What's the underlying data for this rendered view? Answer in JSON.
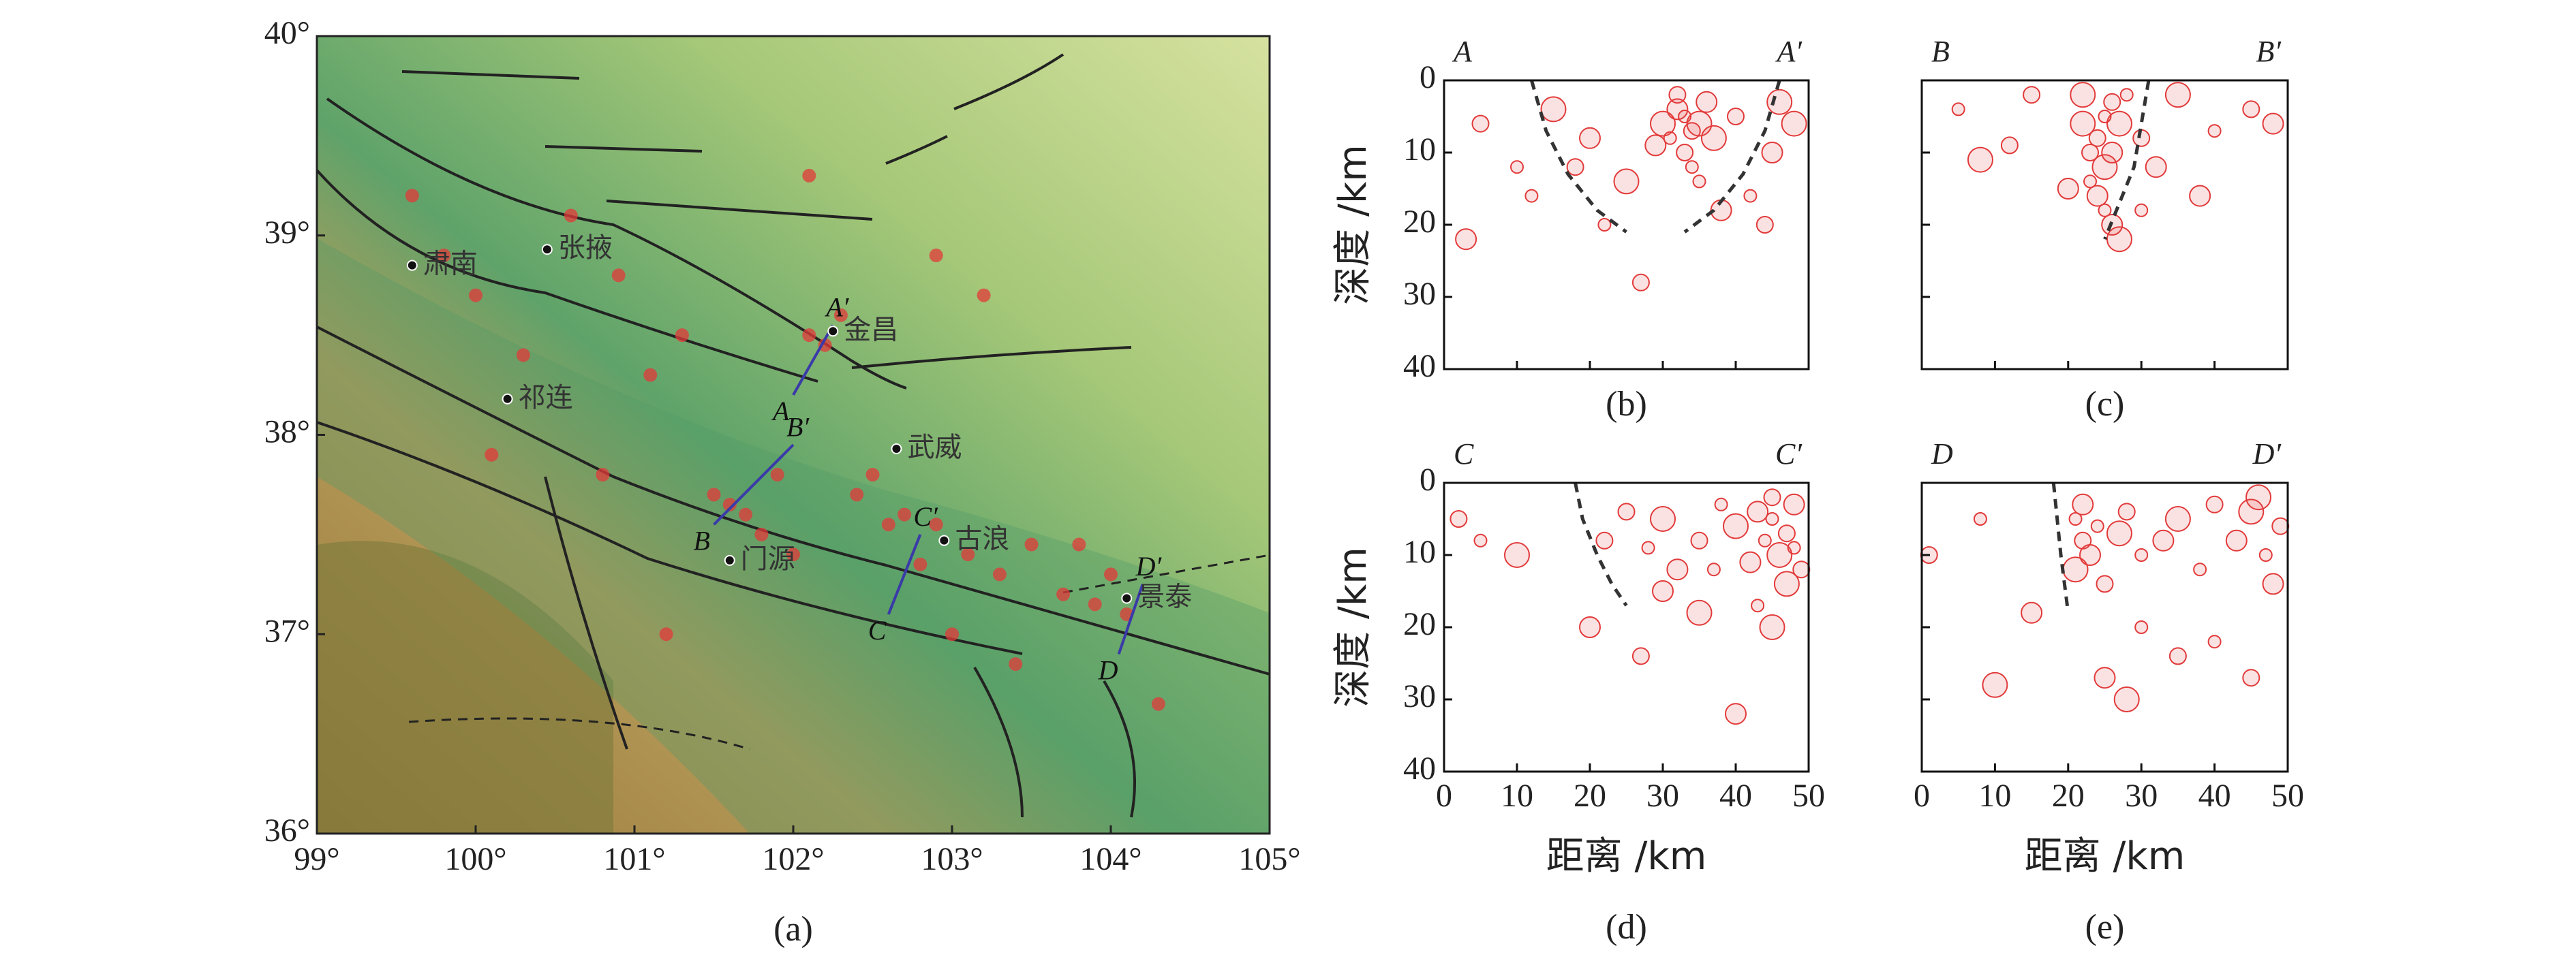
{
  "map": {
    "caption": "(a)",
    "xlim": [
      99,
      105
    ],
    "ylim": [
      36,
      40
    ],
    "xticks": [
      {
        "value": 99,
        "label": "99°"
      },
      {
        "value": 100,
        "label": "100°"
      },
      {
        "value": 101,
        "label": "101°"
      },
      {
        "value": 102,
        "label": "102°"
      },
      {
        "value": 103,
        "label": "103°"
      },
      {
        "value": 104,
        "label": "104°"
      },
      {
        "value": 105,
        "label": "105°"
      }
    ],
    "yticks": [
      {
        "value": 36,
        "label": "36°"
      },
      {
        "value": 37,
        "label": "37°"
      },
      {
        "value": 38,
        "label": "38°"
      },
      {
        "value": 39,
        "label": "39°"
      },
      {
        "value": 40,
        "label": "40°"
      }
    ],
    "places": [
      {
        "name": "张掖",
        "lon": 100.45,
        "lat": 38.93
      },
      {
        "name": "金昌",
        "lon": 102.25,
        "lat": 38.52
      },
      {
        "name": "武威",
        "lon": 102.65,
        "lat": 37.93
      },
      {
        "name": "古浪",
        "lon": 102.95,
        "lat": 37.47
      },
      {
        "name": "祁连",
        "lon": 100.2,
        "lat": 38.18
      },
      {
        "name": "门源",
        "lon": 101.6,
        "lat": 37.37
      },
      {
        "name": "景泰",
        "lon": 104.1,
        "lat": 37.18
      },
      {
        "name": "肃南",
        "lon": 99.6,
        "lat": 38.85
      }
    ],
    "profiles": [
      {
        "start": "A",
        "end": "A′",
        "lon": [
          102.0,
          102.25
        ],
        "lat": [
          38.2,
          38.55
        ]
      },
      {
        "start": "B",
        "end": "B′",
        "lon": [
          101.5,
          102.0
        ],
        "lat": [
          37.55,
          37.95
        ]
      },
      {
        "start": "C",
        "end": "C′",
        "lon": [
          102.6,
          102.8
        ],
        "lat": [
          37.1,
          37.5
        ]
      },
      {
        "start": "D",
        "end": "D′",
        "lon": [
          104.05,
          104.2
        ],
        "lat": [
          36.9,
          37.25
        ]
      }
    ],
    "quakes": {
      "color": "#e23a3a",
      "lon": [
        99.6,
        99.8,
        100.0,
        100.3,
        100.6,
        100.9,
        101.1,
        101.3,
        101.5,
        101.7,
        101.9,
        102.1,
        102.2,
        102.3,
        102.5,
        102.7,
        102.9,
        103.1,
        103.3,
        103.5,
        103.7,
        103.9,
        104.1,
        104.3,
        101.6,
        101.8,
        102.0,
        102.4,
        102.6,
        102.8,
        103.0,
        103.4,
        103.8,
        104.0,
        101.2,
        100.8,
        102.9,
        103.2,
        102.1,
        100.1
      ],
      "lat": [
        39.2,
        38.9,
        38.7,
        38.4,
        39.1,
        38.8,
        38.3,
        38.5,
        37.7,
        37.6,
        37.8,
        38.5,
        38.45,
        38.6,
        37.8,
        37.6,
        37.55,
        37.4,
        37.3,
        37.45,
        37.2,
        37.15,
        37.1,
        36.65,
        37.65,
        37.5,
        37.4,
        37.7,
        37.55,
        37.35,
        37.0,
        36.85,
        37.45,
        37.3,
        37.0,
        37.8,
        38.9,
        38.7,
        39.3,
        37.9
      ]
    }
  },
  "chart_data": [
    {
      "type": "scatter",
      "caption": "(b)",
      "start_label": "A",
      "end_label": "A′",
      "ylabel": "深度 /km",
      "xlabel": null,
      "xlim": [
        0,
        50
      ],
      "ylim": [
        0,
        40
      ],
      "xticks": [
        0,
        10,
        20,
        30,
        40,
        50
      ],
      "yticks": [
        0,
        10,
        20,
        30,
        40
      ],
      "y_inverted": true,
      "show_xtick_labels": false,
      "show_ytick_labels": true,
      "series": [
        {
          "color": "#e23a3a",
          "x": [
            33,
            34,
            32,
            35,
            31,
            33,
            36,
            30,
            34,
            32,
            29,
            37,
            35,
            40,
            45,
            48,
            42,
            44,
            20,
            15,
            10,
            5,
            3,
            25,
            22,
            27,
            38,
            46,
            12,
            18
          ],
          "y": [
            5,
            7,
            4,
            6,
            8,
            10,
            3,
            6,
            12,
            2,
            9,
            8,
            14,
            5,
            10,
            6,
            16,
            20,
            8,
            4,
            12,
            6,
            22,
            14,
            20,
            28,
            18,
            3,
            16,
            12
          ]
        }
      ],
      "curves": [
        {
          "x": [
            12,
            14,
            17,
            21,
            25
          ],
          "y": [
            0,
            7,
            13,
            18,
            21
          ]
        },
        {
          "x": [
            46,
            44,
            41,
            37,
            33
          ],
          "y": [
            0,
            7,
            13,
            18,
            21
          ]
        }
      ]
    },
    {
      "type": "scatter",
      "caption": "(c)",
      "start_label": "B",
      "end_label": "B′",
      "ylabel": null,
      "xlabel": null,
      "xlim": [
        0,
        50
      ],
      "ylim": [
        0,
        40
      ],
      "xticks": [
        0,
        10,
        20,
        30,
        40,
        50
      ],
      "yticks": [
        0,
        10,
        20,
        30,
        40
      ],
      "y_inverted": true,
      "show_xtick_labels": false,
      "show_ytick_labels": false,
      "series": [
        {
          "color": "#e23a3a",
          "x": [
            25,
            24,
            26,
            25,
            23,
            26,
            24,
            27,
            25,
            23,
            26,
            22,
            28,
            30,
            32,
            35,
            40,
            45,
            48,
            8,
            5,
            12,
            20,
            27,
            30,
            15,
            38,
            22
          ],
          "y": [
            5,
            8,
            10,
            12,
            14,
            3,
            16,
            6,
            18,
            10,
            20,
            6,
            2,
            8,
            12,
            2,
            7,
            4,
            6,
            11,
            4,
            9,
            15,
            22,
            18,
            2,
            16,
            2
          ]
        }
      ],
      "curves": [
        {
          "x": [
            31,
            30,
            29,
            27,
            25
          ],
          "y": [
            0,
            6,
            12,
            17,
            22
          ]
        }
      ]
    },
    {
      "type": "scatter",
      "caption": "(d)",
      "start_label": "C",
      "end_label": "C′",
      "ylabel": "深度 /km",
      "xlabel": "距离 /km",
      "xlim": [
        0,
        50
      ],
      "ylim": [
        0,
        40
      ],
      "xticks": [
        0,
        10,
        20,
        30,
        40,
        50
      ],
      "yticks": [
        0,
        10,
        20,
        30,
        40
      ],
      "y_inverted": true,
      "show_xtick_labels": true,
      "show_ytick_labels": true,
      "series": [
        {
          "color": "#e23a3a",
          "x": [
            45,
            47,
            48,
            46,
            44,
            49,
            43,
            47,
            48,
            45,
            42,
            40,
            38,
            35,
            32,
            30,
            28,
            25,
            30,
            35,
            43,
            27,
            20,
            10,
            5,
            2,
            40,
            45,
            37,
            22
          ],
          "y": [
            5,
            7,
            3,
            10,
            8,
            12,
            4,
            14,
            9,
            2,
            11,
            6,
            3,
            8,
            12,
            5,
            9,
            4,
            15,
            18,
            17,
            24,
            20,
            10,
            8,
            5,
            32,
            20,
            12,
            8
          ]
        }
      ],
      "curves": [
        {
          "x": [
            18,
            19,
            21,
            23,
            25
          ],
          "y": [
            0,
            5,
            10,
            14,
            17
          ]
        }
      ]
    },
    {
      "type": "scatter",
      "caption": "(e)",
      "start_label": "D",
      "end_label": "D′",
      "ylabel": null,
      "xlabel": "距离 /km",
      "xlim": [
        0,
        50
      ],
      "ylim": [
        0,
        40
      ],
      "xticks": [
        0,
        10,
        20,
        30,
        40,
        50
      ],
      "yticks": [
        0,
        10,
        20,
        30,
        40
      ],
      "y_inverted": true,
      "show_xtick_labels": true,
      "show_ytick_labels": false,
      "series": [
        {
          "color": "#e23a3a",
          "x": [
            21,
            22,
            23,
            21,
            24,
            25,
            22,
            27,
            30,
            28,
            33,
            35,
            38,
            40,
            43,
            45,
            47,
            49,
            48,
            46,
            30,
            35,
            25,
            28,
            40,
            45,
            15,
            10,
            8,
            1
          ],
          "y": [
            5,
            8,
            10,
            12,
            6,
            14,
            3,
            7,
            10,
            4,
            8,
            5,
            12,
            3,
            8,
            4,
            10,
            6,
            14,
            2,
            20,
            24,
            27,
            30,
            22,
            27,
            18,
            28,
            5,
            10
          ]
        }
      ],
      "curves": [
        {
          "x": [
            18,
            18.5,
            19,
            19.5,
            20
          ],
          "y": [
            0,
            5,
            10,
            14,
            18
          ]
        }
      ]
    }
  ]
}
